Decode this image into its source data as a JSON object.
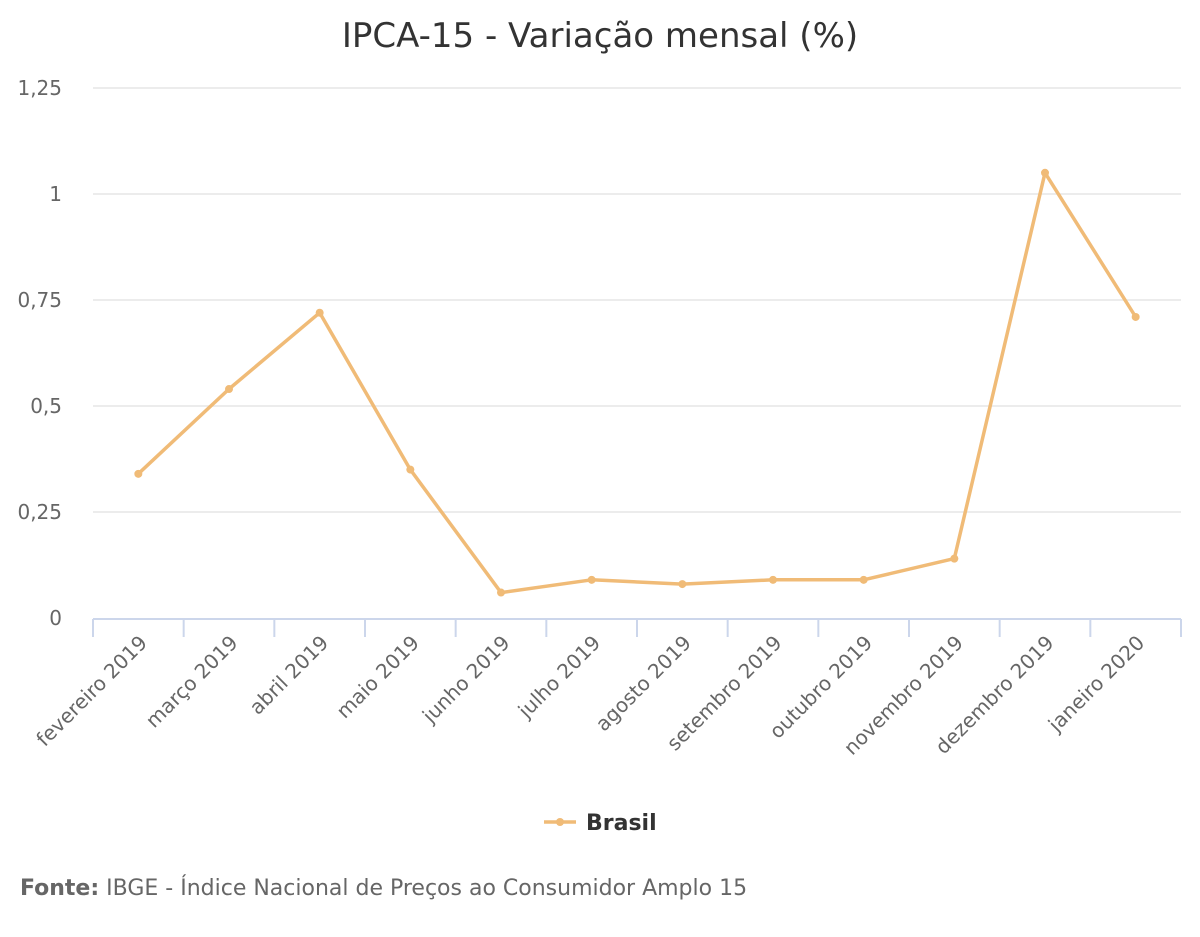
{
  "chart_data": {
    "type": "line",
    "title": "IPCA-15 - Variação mensal (%)",
    "xlabel": "",
    "ylabel": "",
    "categories": [
      "fevereiro 2019",
      "março 2019",
      "abril 2019",
      "maio 2019",
      "junho 2019",
      "julho 2019",
      "agosto 2019",
      "setembro 2019",
      "outubro 2019",
      "novembro 2019",
      "dezembro 2019",
      "janeiro 2020"
    ],
    "series": [
      {
        "name": "Brasil",
        "color": "#f0bb77",
        "values": [
          0.34,
          0.54,
          0.72,
          0.35,
          0.06,
          0.09,
          0.08,
          0.09,
          0.09,
          0.14,
          1.05,
          0.71
        ]
      }
    ],
    "ylim": [
      0,
      1.25
    ],
    "yticks": [
      0,
      0.25,
      0.5,
      0.75,
      1,
      1.25
    ],
    "ytick_labels": [
      "0",
      "0,25",
      "0,5",
      "0,75",
      "1",
      "1,25"
    ],
    "grid": true,
    "legend_position": "bottom-center"
  },
  "source": {
    "label": "Fonte:",
    "text": " IBGE - Índice Nacional de Preços ao Consumidor Amplo 15"
  }
}
